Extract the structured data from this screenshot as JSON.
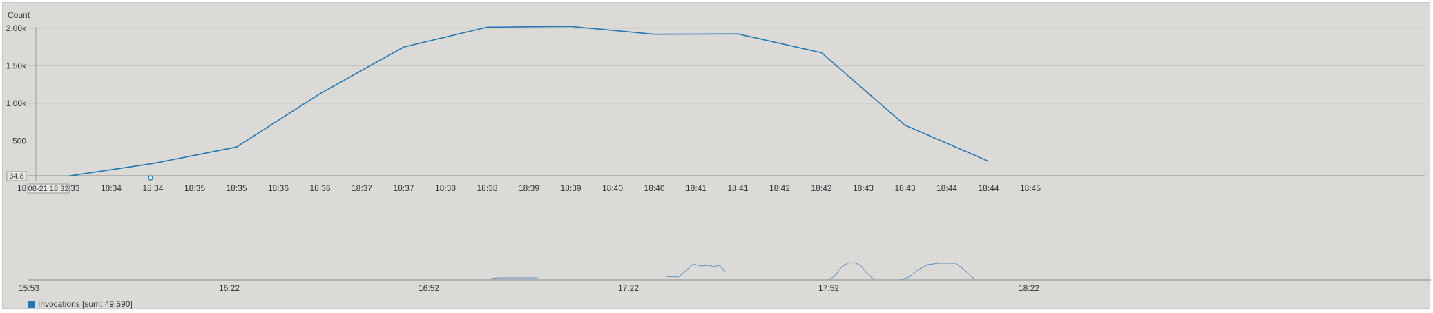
{
  "chart_data": {
    "type": "line",
    "ylabel": "Count",
    "y_ticks": [
      {
        "value": 500,
        "label": "500"
      },
      {
        "value": 1000,
        "label": "1.00k"
      },
      {
        "value": 1500,
        "label": "1.50k"
      },
      {
        "value": 2000,
        "label": "2.00k"
      }
    ],
    "ylim": [
      0,
      2000
    ],
    "x_tick_labels": [
      "18:33",
      "18:33",
      "18:34",
      "18:34",
      "18:35",
      "18:35",
      "18:36",
      "18:36",
      "18:37",
      "18:37",
      "18:38",
      "18:38",
      "18:39",
      "18:39",
      "18:40",
      "18:40",
      "18:41",
      "18:41",
      "18:42",
      "18:42",
      "18:43",
      "18:43",
      "18:44",
      "18:44",
      "18:45"
    ],
    "series": [
      {
        "name": "Invocations",
        "color": "#1f77b4",
        "x": [
          "18:34",
          "18:35",
          "18:36",
          "18:37",
          "18:38",
          "18:39",
          "18:40",
          "18:41",
          "18:42",
          "18:43",
          "18:44",
          "18:45"
        ],
        "values": [
          35,
          200,
          420,
          1130,
          1750,
          2015,
          2025,
          1920,
          1925,
          1675,
          710,
          230
        ]
      }
    ],
    "crosshair_y_label": "34.8",
    "crosshair_x_label": "08-21 18:32",
    "grid": true
  },
  "navigator": {
    "ticks": [
      "15:53",
      "16:22",
      "16:52",
      "17:22",
      "17:52",
      "18:22"
    ]
  },
  "legend": {
    "label": "Invocations [sum: 49,590]",
    "color": "#1f77b4"
  }
}
